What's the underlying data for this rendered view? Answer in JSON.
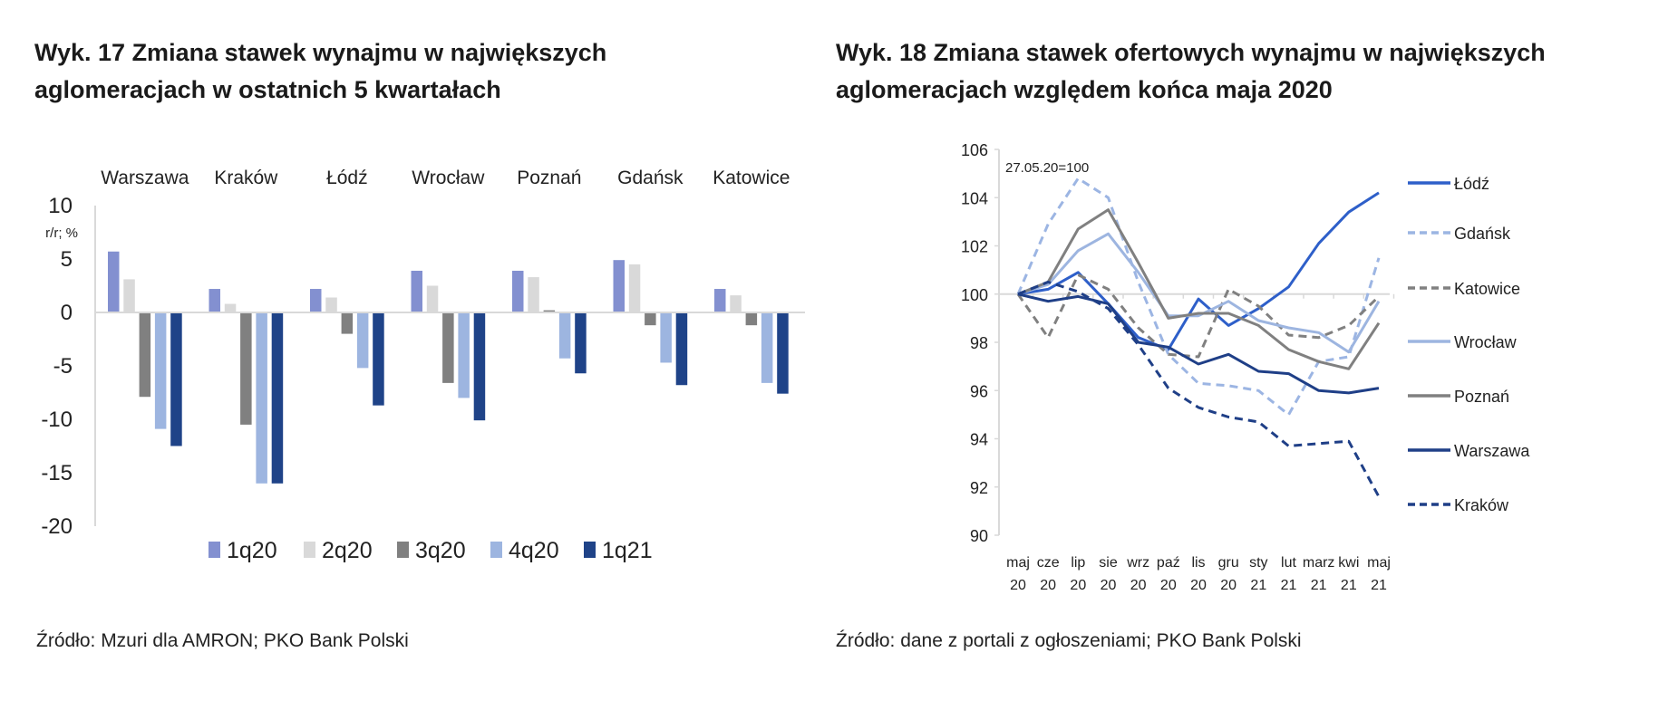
{
  "chart_data": [
    {
      "type": "bar",
      "title": "Wyk. 17 Zmiana stawek wynajmu w największych aglomeracjach w ostatnich 5 kwartałach",
      "title_lines": [
        "Wyk. 17 Zmiana stawek wynajmu w największych",
        "aglomeracjach w ostatnich 5 kwartałach"
      ],
      "ylabel": "r/r; %",
      "ylim": [
        -20,
        10
      ],
      "yticks": [
        "10",
        "5",
        "0",
        "-5",
        "-10",
        "-15",
        "-20"
      ],
      "ytick_values": [
        10,
        5,
        0,
        -5,
        -10,
        -15,
        -20
      ],
      "categories": [
        "Warszawa",
        "Kraków",
        "Łódź",
        "Wrocław",
        "Poznań",
        "Gdańsk",
        "Katowice"
      ],
      "legend_position": "bottom",
      "grid": false,
      "series": [
        {
          "name": "1q20",
          "color": "#8390d0",
          "values": [
            5.7,
            2.2,
            2.2,
            3.9,
            3.9,
            4.9,
            2.2
          ]
        },
        {
          "name": "2q20",
          "color": "#d9d9d9",
          "values": [
            3.1,
            0.8,
            1.4,
            2.5,
            3.3,
            4.5,
            1.6
          ]
        },
        {
          "name": "3q20",
          "color": "#808080",
          "values": [
            -7.9,
            -10.5,
            -2.0,
            -6.6,
            0.2,
            -1.2,
            -1.2
          ]
        },
        {
          "name": "4q20",
          "color": "#9db5e0",
          "values": [
            -10.9,
            -16.0,
            -5.2,
            -8.0,
            -4.3,
            -4.7,
            -6.6
          ]
        },
        {
          "name": "1q21",
          "color": "#1f4388",
          "values": [
            -12.5,
            -16.0,
            -8.7,
            -10.1,
            -5.7,
            -6.8,
            -7.6
          ]
        }
      ],
      "source": "Źródło: Mzuri dla AMRON; PKO Bank Polski"
    },
    {
      "type": "line",
      "title": "Wyk. 18 Zmiana stawek ofertowych wynajmu w największych aglomeracjach względem końca maja 2020",
      "title_lines": [
        "Wyk. 18 Zmiana stawek ofertowych wynajmu w największych",
        "aglomeracjach względem końca maja 2020"
      ],
      "annotation": "27.05.20=100",
      "ylim": [
        90,
        106
      ],
      "yticks": [
        "106",
        "104",
        "102",
        "100",
        "98",
        "96",
        "94",
        "92",
        "90"
      ],
      "ytick_values": [
        106,
        104,
        102,
        100,
        98,
        96,
        94,
        92,
        90
      ],
      "x": [
        [
          "maj",
          "20"
        ],
        [
          "cze",
          "20"
        ],
        [
          "lip",
          "20"
        ],
        [
          "sie",
          "20"
        ],
        [
          "wrz",
          "20"
        ],
        [
          "paź",
          "20"
        ],
        [
          "lis",
          "20"
        ],
        [
          "gru",
          "20"
        ],
        [
          "sty",
          "21"
        ],
        [
          "lut",
          "21"
        ],
        [
          "marz",
          "21"
        ],
        [
          "kwi",
          "21"
        ],
        [
          "maj",
          "21"
        ]
      ],
      "legend_position": "right",
      "grid": false,
      "series": [
        {
          "name": "Łódź",
          "color": "#2e5fc9",
          "dashed": false,
          "values": [
            100,
            100.2,
            100.9,
            99.6,
            98.2,
            97.7,
            99.8,
            98.7,
            99.4,
            100.3,
            102.1,
            103.4,
            104.2
          ]
        },
        {
          "name": "Gdańsk",
          "color": "#9cb5e3",
          "dashed": true,
          "values": [
            100,
            102.9,
            104.8,
            104.0,
            100.5,
            97.5,
            96.3,
            96.2,
            96.0,
            95.0,
            97.2,
            97.4,
            101.5
          ]
        },
        {
          "name": "Katowice",
          "color": "#808080",
          "dashed": true,
          "values": [
            100,
            98.2,
            100.8,
            100.2,
            98.6,
            97.5,
            97.4,
            100.2,
            99.5,
            98.3,
            98.2,
            98.7,
            99.9
          ]
        },
        {
          "name": "Wrocław",
          "color": "#9db5e0",
          "dashed": false,
          "values": [
            100,
            100.4,
            101.8,
            102.5,
            100.9,
            99.1,
            99.1,
            99.7,
            98.9,
            98.6,
            98.4,
            97.6,
            99.7
          ]
        },
        {
          "name": "Poznań",
          "color": "#808080",
          "dashed": false,
          "values": [
            100,
            100.5,
            102.7,
            103.5,
            101.3,
            99.0,
            99.2,
            99.2,
            98.7,
            97.7,
            97.2,
            96.9,
            98.8
          ]
        },
        {
          "name": "Warszawa",
          "color": "#1f3f87",
          "dashed": false,
          "values": [
            100,
            99.7,
            99.9,
            99.6,
            98.0,
            97.8,
            97.1,
            97.5,
            96.8,
            96.7,
            96.0,
            95.9,
            96.1
          ]
        },
        {
          "name": "Kraków",
          "color": "#1f3f87",
          "dashed": true,
          "values": [
            100,
            100.5,
            100.1,
            99.4,
            97.9,
            96.1,
            95.3,
            94.9,
            94.7,
            93.7,
            93.8,
            93.9,
            91.6
          ]
        }
      ],
      "source": "Źródło: dane z portali z ogłoszeniami; PKO Bank Polski"
    }
  ]
}
